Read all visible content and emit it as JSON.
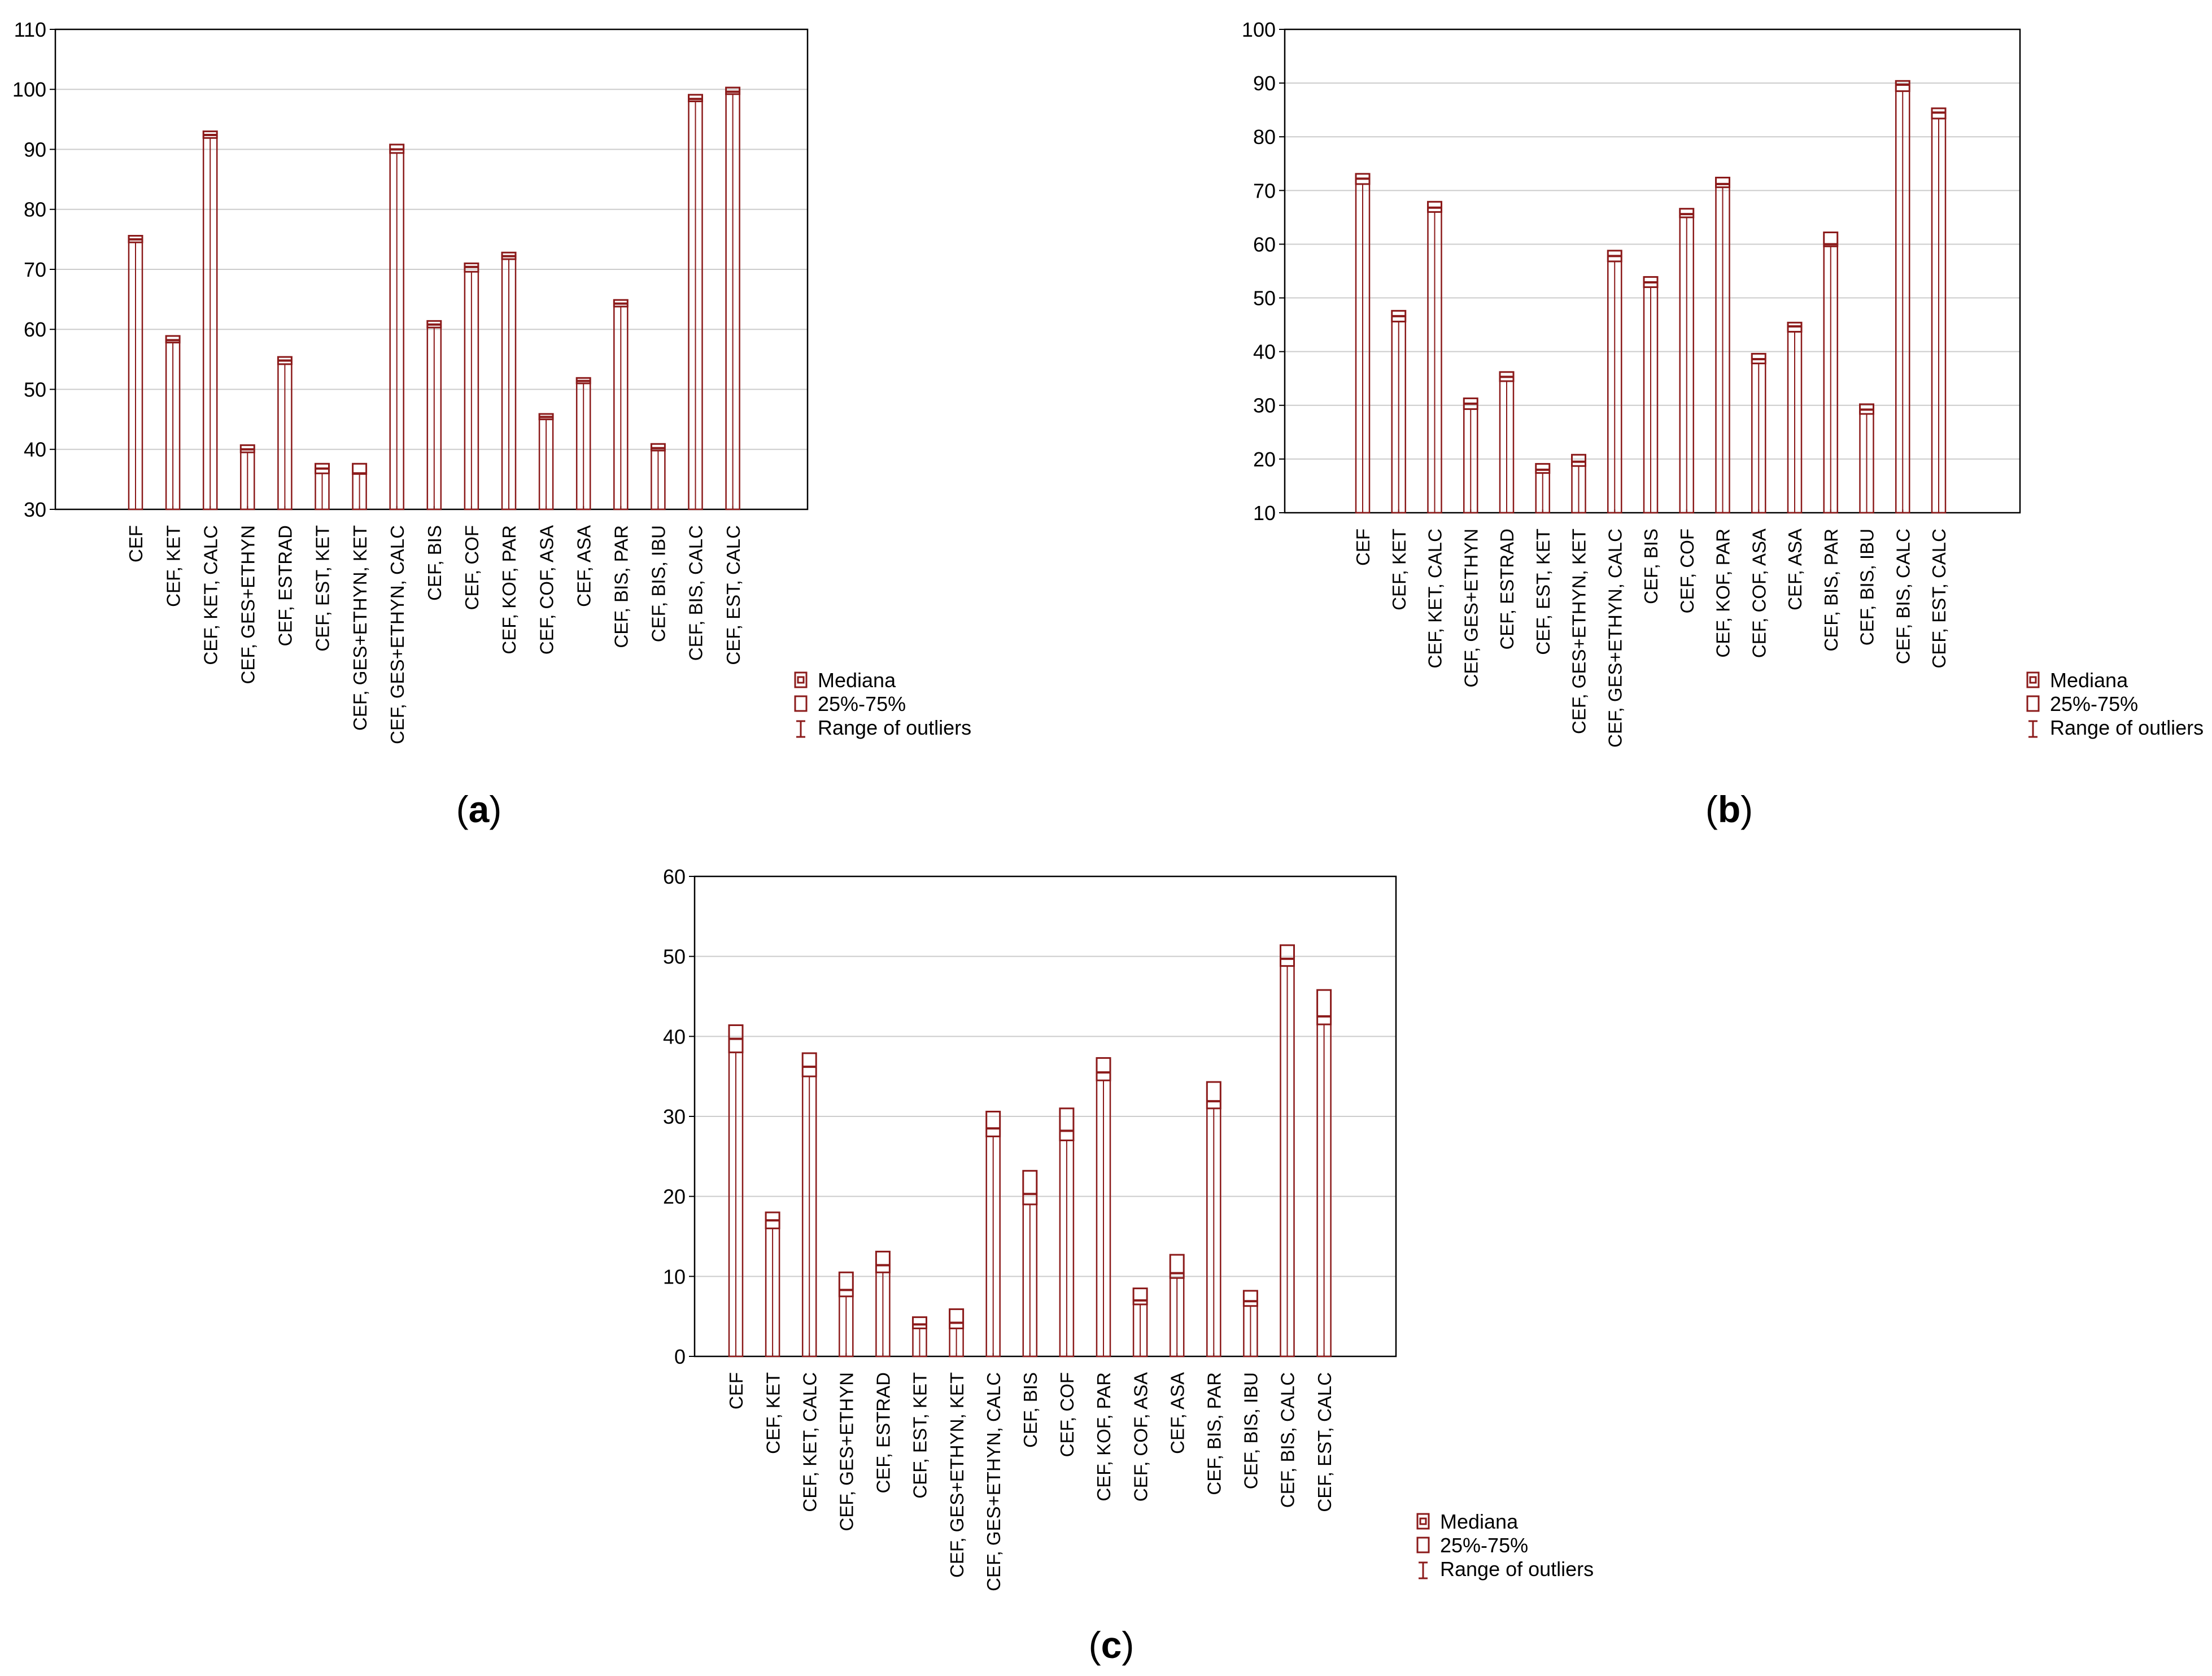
{
  "figure": {
    "legend": {
      "median": "Mediana",
      "iqr": "25%-75%",
      "range": "Range of outliers"
    },
    "colors": {
      "box": "#8b1a1a",
      "grid": "#cccccc",
      "axis": "#000000"
    }
  },
  "chart_data": [
    {
      "panel_label": "(a)",
      "panel_letter": "a",
      "type": "box",
      "ylim": [
        30,
        110
      ],
      "yticks": [
        30,
        40,
        50,
        60,
        70,
        80,
        90,
        100,
        110
      ],
      "categories": [
        "CEF",
        "CEF, KET",
        "CEF, KET, CALC",
        "CEF, GES+ETHYN",
        "CEF, ESTRAD",
        "CEF, EST, KET",
        "CEF, GES+ETHYN, KET",
        "CEF, GES+ETHYN, CALC",
        "CEF,  BIS",
        "CEF, COF",
        "CEF, KOF, PAR",
        "CEF, COF, ASA",
        "CEF, ASA",
        "CEF, BIS, PAR",
        "CEF, BIS, IBU",
        "CEF, BIS, CALC",
        "CEF, EST, CALC"
      ],
      "q1": [
        74.5,
        57.8,
        91.9,
        39.5,
        54.2,
        36.0,
        35.9,
        89.4,
        60.3,
        69.6,
        71.7,
        45.0,
        51.0,
        63.8,
        39.8,
        98.0,
        99.2
      ],
      "median": [
        75.0,
        58.2,
        92.4,
        40.0,
        54.8,
        36.8,
        36.0,
        90.0,
        60.8,
        70.4,
        72.2,
        45.4,
        51.4,
        64.3,
        40.2,
        98.4,
        99.6
      ],
      "q3": [
        75.6,
        58.9,
        93.0,
        40.7,
        55.4,
        37.6,
        37.6,
        90.8,
        61.4,
        71.0,
        72.8,
        45.9,
        51.9,
        64.9,
        40.9,
        99.1,
        100.3
      ]
    },
    {
      "panel_label": "(b)",
      "panel_letter": "b",
      "type": "box",
      "ylim": [
        10,
        100
      ],
      "yticks": [
        10,
        20,
        30,
        40,
        50,
        60,
        70,
        80,
        90,
        100
      ],
      "categories": [
        "CEF",
        "CEF, KET",
        "CEF, KET, CALC",
        "CEF, GES+ETHYN",
        "CEF, ESTRAD",
        "CEF, EST, KET",
        "CEF, GES+ETHYN, KET",
        "CEF, GES+ETHYN, CALC",
        "CEF,  BIS",
        "CEF, COF",
        "CEF, KOF, PAR",
        "CEF, COF, ASA",
        "CEF, ASA",
        "CEF, BIS, PAR",
        "CEF, BIS, IBU",
        "CEF, BIS, CALC",
        "CEF, EST, CALC"
      ],
      "q1": [
        71.2,
        45.6,
        66.0,
        29.3,
        34.5,
        17.4,
        18.7,
        56.8,
        52.0,
        65.0,
        70.6,
        37.8,
        43.7,
        59.6,
        28.4,
        88.5,
        83.4
      ],
      "median": [
        72.2,
        46.6,
        66.8,
        30.3,
        35.3,
        18.0,
        19.5,
        57.8,
        52.9,
        65.6,
        71.2,
        38.6,
        44.7,
        60.0,
        29.2,
        89.7,
        84.5
      ],
      "q3": [
        73.1,
        47.6,
        67.9,
        31.3,
        36.2,
        19.1,
        20.8,
        58.8,
        53.9,
        66.6,
        72.4,
        39.6,
        45.4,
        62.2,
        30.2,
        90.4,
        85.3
      ]
    },
    {
      "panel_label": "(c)",
      "panel_letter": "c",
      "type": "box",
      "ylim": [
        0,
        60
      ],
      "yticks": [
        0,
        10,
        20,
        30,
        40,
        50,
        60
      ],
      "categories": [
        "CEF",
        "CEF, KET",
        "CEF, KET, CALC",
        "CEF, GES+ETHYN",
        "CEF, ESTRAD",
        "CEF, EST, KET",
        "CEF, GES+ETHYN, KET",
        "CEF, GES+ETHYN, CALC",
        "CEF,  BIS",
        "CEF, COF",
        "CEF, KOF, PAR",
        "CEF, COF, ASA",
        "CEF, ASA",
        "CEF, BIS, PAR",
        "CEF, BIS, IBU",
        "CEF, BIS, CALC",
        "CEF, EST, CALC"
      ],
      "q1": [
        38.0,
        16.0,
        35.0,
        7.5,
        10.5,
        3.5,
        3.5,
        27.5,
        19.0,
        27.0,
        34.5,
        6.5,
        9.8,
        31.0,
        6.3,
        48.8,
        41.5
      ],
      "median": [
        39.7,
        17.0,
        36.2,
        8.3,
        11.4,
        4.0,
        4.2,
        28.5,
        20.3,
        28.2,
        35.5,
        7.0,
        10.4,
        31.9,
        6.9,
        49.7,
        42.5
      ],
      "q3": [
        41.4,
        18.0,
        37.9,
        10.5,
        13.1,
        4.9,
        5.9,
        30.6,
        23.2,
        31.0,
        37.3,
        8.5,
        12.7,
        34.3,
        8.2,
        51.4,
        45.8
      ]
    }
  ]
}
